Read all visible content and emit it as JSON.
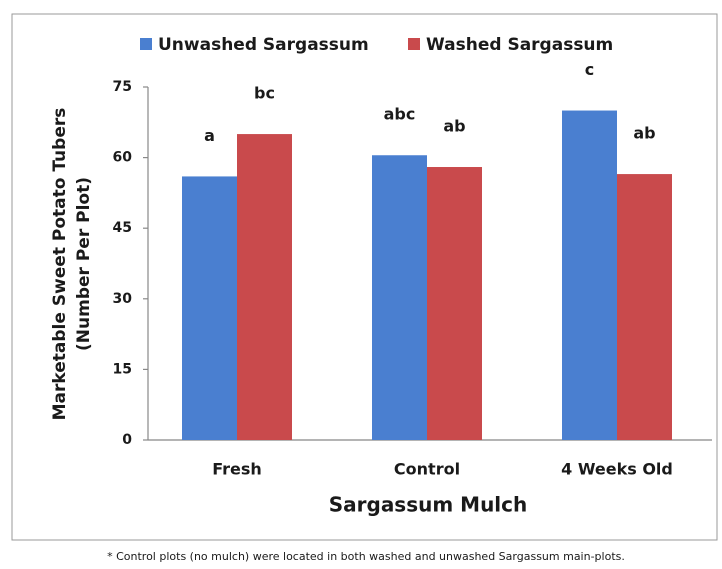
{
  "chart_data": {
    "type": "bar",
    "xlabel": "Sargassum Mulch",
    "ylabel": [
      "Marketable Sweet Potato Tubers",
      "(Number Per Plot)"
    ],
    "categories": [
      "Fresh",
      "Control",
      "4 Weeks Old"
    ],
    "series": [
      {
        "name": "Unwashed Sargassum",
        "color": "#4a7fd0",
        "values": [
          56,
          60.5,
          70
        ],
        "annotations": [
          "a",
          "abc",
          "c"
        ]
      },
      {
        "name": "Washed Sargassum",
        "color": "#c94a4c",
        "values": [
          65,
          58,
          56.5
        ],
        "annotations": [
          "bc",
          "ab",
          "ab"
        ]
      }
    ],
    "ylim": [
      0,
      75
    ],
    "yticks": [
      0,
      15,
      30,
      45,
      60,
      75
    ],
    "legend": "top",
    "grid": false,
    "footnote": "* Control plots (no mulch) were located in both washed and unwashed Sargassum main-plots."
  }
}
